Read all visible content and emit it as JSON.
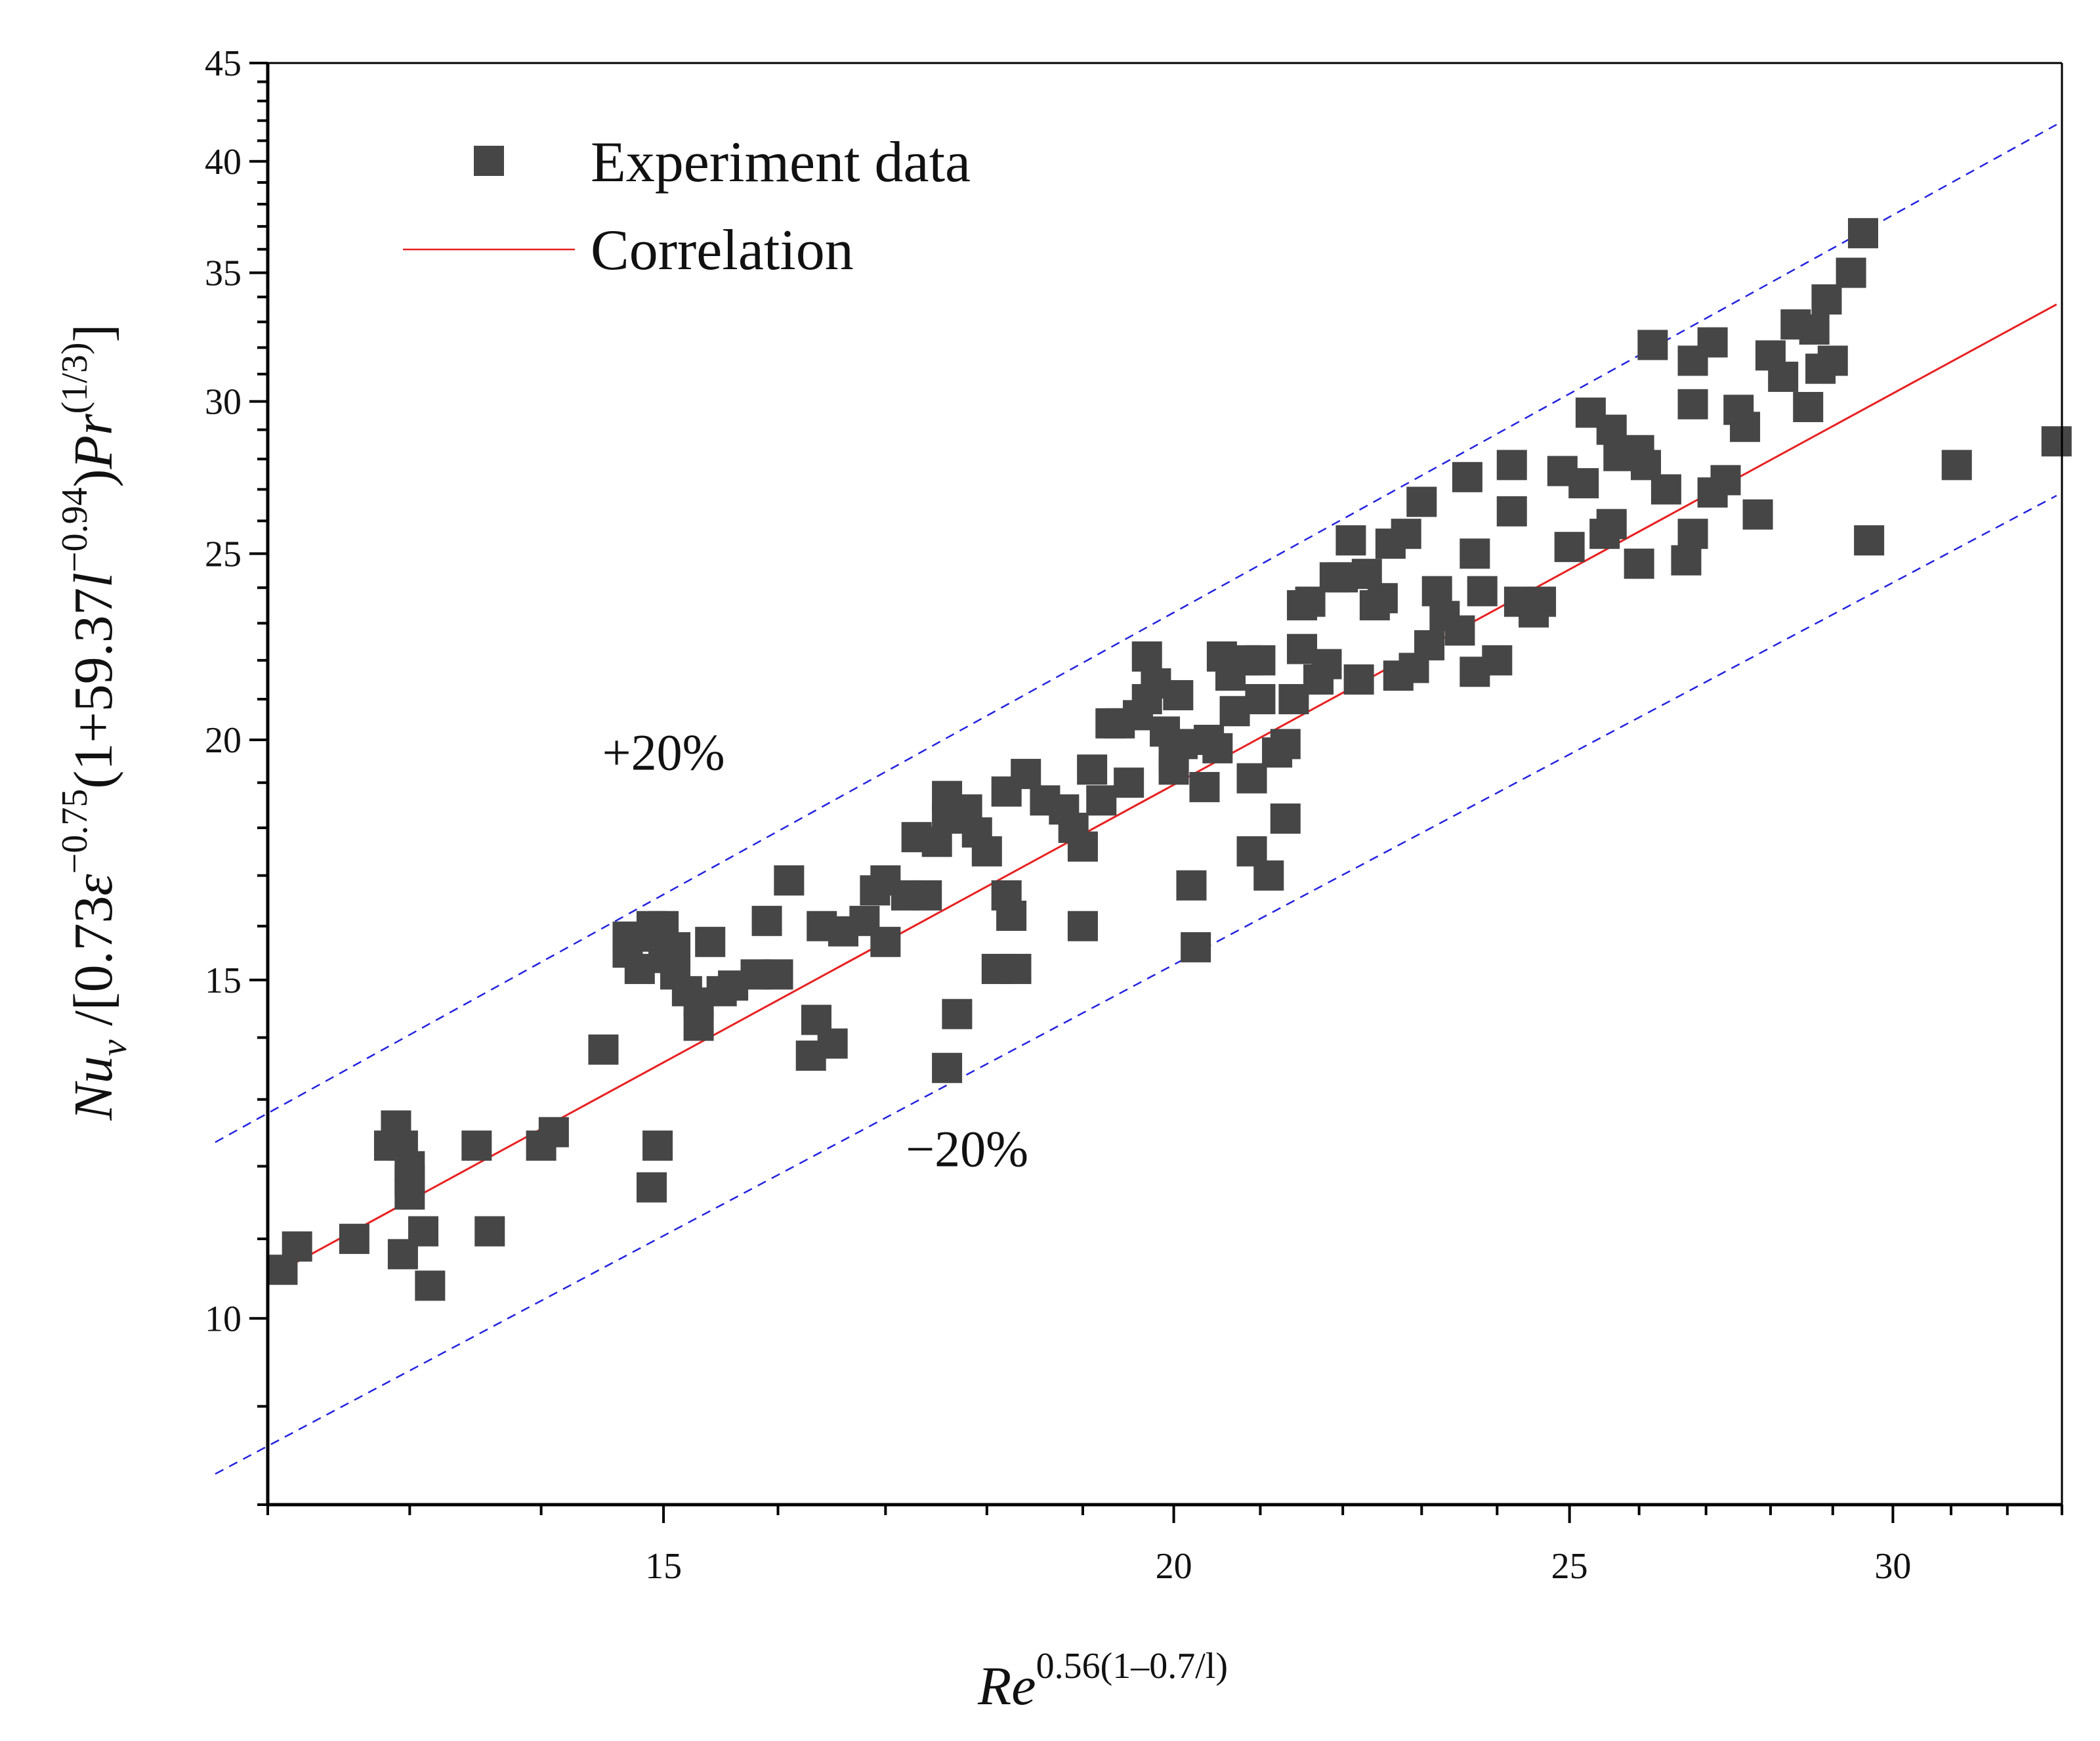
{
  "chart_data": {
    "type": "scatter",
    "xscale": "log",
    "yscale": "log",
    "xlim": [
      12.0,
      33.0
    ],
    "ylim": [
      8.0,
      45.0
    ],
    "xticks_major": [
      15,
      20,
      25,
      30
    ],
    "yticks_major": [
      10,
      15,
      20,
      25,
      30,
      35,
      40,
      45
    ],
    "xlabel": {
      "base": "Re",
      "exponent": "0.56(1–0.7/l)"
    },
    "ylabel": {
      "numerator": "Nu",
      "sub": "v",
      "rest1": " /[0.73",
      "eps": "ε",
      "exp1": "−0.75",
      "rest2": "(1+59.37",
      "l": "l",
      "exp2": "−0.94",
      "rest3": ")",
      "pr": "Pr",
      "exp3": "(1/3)",
      "close": "]"
    },
    "legend": {
      "position": "top-left",
      "items": [
        {
          "label": "Experiment data",
          "marker": "square",
          "color": "#464646"
        },
        {
          "label": "Correlation",
          "marker": "line",
          "color": "#e82020"
        }
      ]
    },
    "annotations": [
      {
        "text": "+20%",
        "x": 15.0,
        "y": 19.3
      },
      {
        "text": "−20%",
        "x": 17.8,
        "y": 12.0
      }
    ],
    "series": [
      {
        "name": "Experiment data",
        "color": "#464646",
        "points": [
          [
            12.1,
            10.6
          ],
          [
            12.2,
            10.9
          ],
          [
            12.6,
            11.0
          ],
          [
            12.9,
            12.6
          ],
          [
            12.95,
            12.3
          ],
          [
            13.0,
            12.0
          ],
          [
            12.85,
            12.3
          ],
          [
            13.0,
            11.8
          ],
          [
            13.0,
            11.6
          ],
          [
            13.1,
            11.1
          ],
          [
            12.95,
            10.8
          ],
          [
            13.15,
            10.4
          ],
          [
            13.5,
            12.3
          ],
          [
            13.6,
            11.1
          ],
          [
            14.0,
            12.3
          ],
          [
            14.1,
            12.5
          ],
          [
            14.5,
            13.8
          ],
          [
            14.8,
            15.2
          ],
          [
            14.7,
            15.5
          ],
          [
            14.9,
            15.8
          ],
          [
            14.9,
            16.0
          ],
          [
            14.7,
            15.8
          ],
          [
            15.0,
            15.4
          ],
          [
            15.0,
            16.0
          ],
          [
            15.1,
            15.6
          ],
          [
            15.1,
            15.1
          ],
          [
            15.2,
            14.8
          ],
          [
            15.3,
            14.6
          ],
          [
            15.3,
            14.2
          ],
          [
            15.4,
            15.7
          ],
          [
            15.5,
            14.8
          ],
          [
            15.6,
            14.9
          ],
          [
            15.8,
            15.1
          ],
          [
            15.9,
            16.1
          ],
          [
            16.0,
            15.1
          ],
          [
            16.1,
            16.9
          ],
          [
            16.3,
            13.7
          ],
          [
            16.35,
            14.3
          ],
          [
            16.5,
            13.9
          ],
          [
            14.95,
            12.3
          ],
          [
            14.9,
            11.7
          ],
          [
            16.4,
            16.0
          ],
          [
            16.6,
            15.9
          ],
          [
            16.8,
            16.1
          ],
          [
            16.9,
            16.7
          ],
          [
            17.0,
            16.9
          ],
          [
            17.0,
            15.7
          ],
          [
            17.2,
            16.6
          ],
          [
            17.3,
            17.8
          ],
          [
            17.4,
            16.6
          ],
          [
            17.5,
            17.7
          ],
          [
            17.6,
            18.2
          ],
          [
            17.6,
            18.7
          ],
          [
            17.8,
            18.4
          ],
          [
            17.9,
            17.9
          ],
          [
            18.0,
            17.5
          ],
          [
            18.2,
            18.8
          ],
          [
            18.2,
            16.6
          ],
          [
            18.25,
            16.2
          ],
          [
            18.1,
            15.2
          ],
          [
            18.3,
            15.2
          ],
          [
            17.6,
            13.5
          ],
          [
            17.7,
            14.4
          ],
          [
            18.4,
            19.2
          ],
          [
            18.6,
            18.6
          ],
          [
            18.8,
            18.4
          ],
          [
            18.9,
            18.0
          ],
          [
            19.0,
            17.6
          ],
          [
            19.1,
            19.3
          ],
          [
            19.2,
            18.6
          ],
          [
            19.3,
            20.4
          ],
          [
            19.4,
            20.4
          ],
          [
            19.0,
            16.0
          ],
          [
            19.5,
            19.0
          ],
          [
            19.6,
            20.6
          ],
          [
            19.7,
            21.0
          ],
          [
            19.7,
            22.1
          ],
          [
            19.8,
            21.4
          ],
          [
            19.9,
            20.2
          ],
          [
            20.0,
            19.6
          ],
          [
            20.0,
            19.3
          ],
          [
            20.05,
            21.1
          ],
          [
            20.1,
            19.9
          ],
          [
            20.2,
            16.8
          ],
          [
            20.25,
            15.6
          ],
          [
            20.35,
            18.9
          ],
          [
            20.4,
            20.0
          ],
          [
            20.5,
            19.8
          ],
          [
            20.55,
            22.1
          ],
          [
            20.65,
            21.6
          ],
          [
            20.7,
            20.7
          ],
          [
            20.85,
            22.0
          ],
          [
            20.9,
            19.1
          ],
          [
            20.9,
            17.5
          ],
          [
            21.0,
            21.0
          ],
          [
            21.0,
            22.0
          ],
          [
            21.1,
            17.0
          ],
          [
            21.2,
            19.7
          ],
          [
            21.3,
            18.2
          ],
          [
            21.3,
            19.9
          ],
          [
            21.4,
            21.0
          ],
          [
            21.5,
            22.3
          ],
          [
            21.5,
            23.5
          ],
          [
            21.6,
            23.6
          ],
          [
            21.7,
            21.5
          ],
          [
            21.8,
            21.9
          ],
          [
            21.9,
            24.3
          ],
          [
            22.0,
            24.3
          ],
          [
            22.1,
            25.4
          ],
          [
            22.2,
            21.5
          ],
          [
            22.3,
            24.4
          ],
          [
            22.4,
            23.5
          ],
          [
            22.5,
            23.7
          ],
          [
            22.6,
            25.3
          ],
          [
            22.7,
            21.6
          ],
          [
            22.8,
            25.6
          ],
          [
            22.9,
            21.8
          ],
          [
            23.0,
            26.6
          ],
          [
            23.1,
            22.4
          ],
          [
            23.2,
            23.9
          ],
          [
            23.3,
            23.2
          ],
          [
            23.5,
            22.8
          ],
          [
            23.6,
            27.4
          ],
          [
            23.7,
            25.0
          ],
          [
            23.7,
            21.7
          ],
          [
            23.8,
            23.9
          ],
          [
            24.0,
            22.0
          ],
          [
            24.2,
            26.3
          ],
          [
            24.2,
            27.8
          ],
          [
            24.3,
            23.6
          ],
          [
            24.5,
            23.3
          ],
          [
            24.6,
            23.6
          ],
          [
            24.9,
            27.6
          ],
          [
            25.0,
            25.2
          ],
          [
            25.2,
            27.2
          ],
          [
            25.3,
            29.6
          ],
          [
            25.5,
            25.6
          ],
          [
            25.6,
            25.9
          ],
          [
            25.6,
            29.0
          ],
          [
            25.7,
            28.1
          ],
          [
            26.0,
            24.7
          ],
          [
            26.0,
            28.3
          ],
          [
            26.1,
            27.8
          ],
          [
            26.2,
            32.1
          ],
          [
            26.4,
            27.0
          ],
          [
            26.7,
            24.8
          ],
          [
            26.8,
            25.6
          ],
          [
            26.8,
            29.9
          ],
          [
            26.8,
            31.5
          ],
          [
            27.1,
            32.2
          ],
          [
            27.1,
            26.9
          ],
          [
            27.3,
            27.3
          ],
          [
            27.5,
            29.7
          ],
          [
            27.6,
            29.1
          ],
          [
            27.8,
            26.2
          ],
          [
            28.0,
            31.7
          ],
          [
            28.2,
            30.9
          ],
          [
            28.4,
            32.9
          ],
          [
            28.6,
            29.8
          ],
          [
            28.7,
            32.7
          ],
          [
            28.8,
            31.2
          ],
          [
            28.9,
            33.9
          ],
          [
            29.0,
            31.5
          ],
          [
            29.3,
            35.0
          ],
          [
            29.5,
            36.7
          ],
          [
            29.6,
            25.4
          ],
          [
            31.1,
            27.8
          ],
          [
            32.9,
            28.6
          ]
        ]
      }
    ],
    "correlation_line": {
      "name": "Correlation",
      "color": "#e82020",
      "x": [
        12.1,
        32.9
      ],
      "y": [
        10.6,
        33.7
      ]
    },
    "bound_lines": [
      {
        "name": "+20%",
        "color": "#2323e0",
        "x": [
          11.65,
          32.9
        ],
        "y": [
          12.35,
          41.8
        ]
      },
      {
        "name": "−20%",
        "color": "#2323e0",
        "x": [
          11.65,
          32.9
        ],
        "y": [
          8.3,
          26.8
        ]
      }
    ]
  }
}
